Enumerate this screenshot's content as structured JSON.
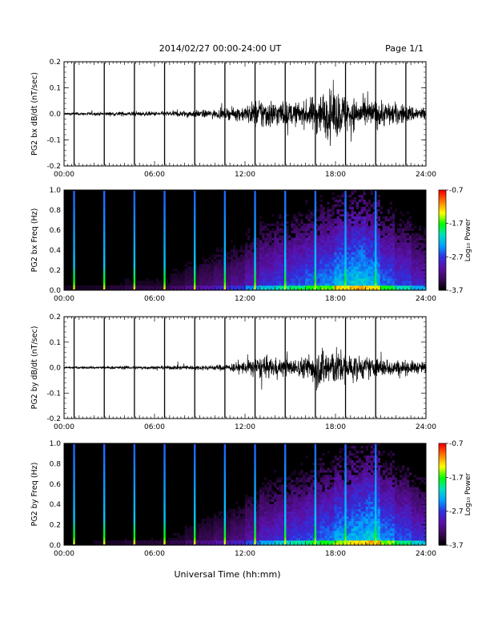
{
  "header": {
    "title": "2014/02/27  00:00-24:00 UT",
    "page": "Page 1/1"
  },
  "footer": {
    "xlabel": "Universal Time (hh:mm)"
  },
  "colors": {
    "trace": "#000000",
    "spectrogram_colormap": [
      "#000000",
      "#3b0a5a",
      "#5a10a8",
      "#3030e0",
      "#00a0ff",
      "#00e0c0",
      "#00ff00",
      "#ffff00",
      "#ff8000",
      "#ff0000"
    ]
  },
  "chart_data": [
    {
      "type": "line",
      "title": "",
      "ylabel": "PG2 bx dB/dt (nT/sec)",
      "xlabel": "",
      "xlim": [
        "00:00",
        "24:00"
      ],
      "ylim": [
        -0.2,
        0.2
      ],
      "x_ticks": [
        "00:00",
        "06:00",
        "12:00",
        "18:00",
        "24:00"
      ],
      "y_ticks": [
        "-0.2",
        "-0.1",
        "0.0",
        "0.1",
        "0.2"
      ],
      "series": [
        {
          "x": [
            "00:00",
            "02:00",
            "04:00",
            "06:00",
            "08:00",
            "10:00",
            "11:00",
            "12:00",
            "13:00",
            "14:00",
            "15:00",
            "16:00",
            "17:00",
            "18:00",
            "19:00",
            "20:00",
            "21:00",
            "22:00",
            "23:00",
            "24:00"
          ],
          "amplitude": [
            0.005,
            0.006,
            0.008,
            0.008,
            0.012,
            0.015,
            0.02,
            0.03,
            0.06,
            0.05,
            0.04,
            0.045,
            0.08,
            0.09,
            0.06,
            0.05,
            0.05,
            0.04,
            0.03,
            0.025
          ]
        }
      ],
      "spikes": [
        "00:40",
        "02:40",
        "04:40",
        "06:40",
        "08:40",
        "10:40",
        "12:40",
        "14:40",
        "16:40",
        "18:40",
        "20:40",
        "22:40"
      ]
    },
    {
      "type": "heatmap",
      "title": "",
      "ylabel": "PG2 bx Freq (Hz)",
      "xlabel": "",
      "xlim": [
        "00:00",
        "24:00"
      ],
      "ylim": [
        0.0,
        1.0
      ],
      "x_ticks": [
        "00:00",
        "06:00",
        "12:00",
        "18:00",
        "24:00"
      ],
      "y_ticks": [
        "0.0",
        "0.2",
        "0.4",
        "0.6",
        "0.8",
        "1.0"
      ],
      "colorbar": {
        "label": "Log₁₀ Power",
        "range": [
          -3.7,
          -0.7
        ],
        "ticks": [
          "-0.7",
          "-1.7",
          "-2.7",
          "-3.7"
        ]
      },
      "activity_by_hour": [
        0.05,
        0.05,
        0.06,
        0.08,
        0.1,
        0.1,
        0.1,
        0.15,
        0.2,
        0.25,
        0.3,
        0.35,
        0.45,
        0.55,
        0.6,
        0.65,
        0.7,
        0.75,
        0.85,
        0.9,
        0.85,
        0.7,
        0.6,
        0.5
      ],
      "spikes": [
        "00:40",
        "02:40",
        "04:40",
        "06:40",
        "08:40",
        "10:40",
        "12:40",
        "14:40",
        "16:40",
        "18:40",
        "20:40"
      ]
    },
    {
      "type": "line",
      "title": "",
      "ylabel": "PG2 by dB/dt (nT/sec)",
      "xlabel": "",
      "xlim": [
        "00:00",
        "24:00"
      ],
      "ylim": [
        -0.2,
        0.2
      ],
      "x_ticks": [
        "00:00",
        "06:00",
        "12:00",
        "18:00",
        "24:00"
      ],
      "y_ticks": [
        "-0.2",
        "-0.1",
        "0.0",
        "0.1",
        "0.2"
      ],
      "series": [
        {
          "x": [
            "00:00",
            "02:00",
            "04:00",
            "06:00",
            "08:00",
            "10:00",
            "11:00",
            "12:00",
            "13:00",
            "14:00",
            "15:00",
            "16:00",
            "17:00",
            "18:00",
            "19:00",
            "20:00",
            "21:00",
            "22:00",
            "23:00",
            "24:00"
          ],
          "amplitude": [
            0.004,
            0.005,
            0.006,
            0.006,
            0.008,
            0.01,
            0.015,
            0.025,
            0.04,
            0.035,
            0.03,
            0.04,
            0.08,
            0.07,
            0.05,
            0.04,
            0.035,
            0.03,
            0.025,
            0.02
          ]
        }
      ],
      "spikes": [
        "00:40",
        "02:40",
        "04:40",
        "06:40",
        "08:40",
        "10:40",
        "12:40",
        "14:40",
        "16:40",
        "18:40",
        "20:40"
      ]
    },
    {
      "type": "heatmap",
      "title": "",
      "ylabel": "PG2 by Freq (Hz)",
      "xlabel": "",
      "xlim": [
        "00:00",
        "24:00"
      ],
      "ylim": [
        0.0,
        1.0
      ],
      "x_ticks": [
        "00:00",
        "06:00",
        "12:00",
        "18:00",
        "24:00"
      ],
      "y_ticks": [
        "0.0",
        "0.2",
        "0.4",
        "0.6",
        "0.8",
        "1.0"
      ],
      "colorbar": {
        "label": "Log₁₀ Power",
        "range": [
          -3.7,
          -0.7
        ],
        "ticks": [
          "-0.7",
          "-1.7",
          "-2.7",
          "-3.7"
        ]
      },
      "activity_by_hour": [
        0.04,
        0.04,
        0.05,
        0.06,
        0.08,
        0.08,
        0.08,
        0.1,
        0.15,
        0.2,
        0.25,
        0.3,
        0.4,
        0.5,
        0.55,
        0.6,
        0.65,
        0.7,
        0.8,
        0.85,
        0.9,
        0.75,
        0.65,
        0.55
      ],
      "spikes": [
        "00:40",
        "02:40",
        "04:40",
        "06:40",
        "08:40",
        "10:40",
        "12:40",
        "14:40",
        "16:40",
        "18:40",
        "20:40"
      ]
    }
  ]
}
